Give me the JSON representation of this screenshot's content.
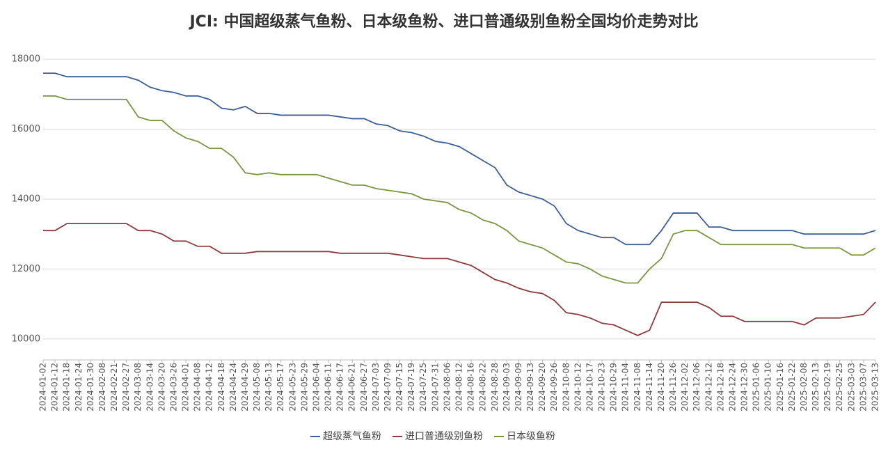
{
  "chart_data": {
    "type": "line",
    "title": "JCI: 中国超级蒸气鱼粉、日本级鱼粉、进口普通级别鱼粉全国均价走势对比",
    "categories": [
      "2024-01-02",
      "2024-01-12",
      "2024-01-18",
      "2024-01-24",
      "2024-01-30",
      "2024-02-08",
      "2024-02-21",
      "2024-02-27",
      "2024-03-08",
      "2024-03-14",
      "2024-03-20",
      "2024-03-26",
      "2024-04-01",
      "2024-04-08",
      "2024-04-12",
      "2024-04-18",
      "2024-04-24",
      "2024-04-29",
      "2024-05-08",
      "2024-05-13",
      "2024-05-17",
      "2024-05-23",
      "2024-05-29",
      "2024-06-04",
      "2024-06-11",
      "2024-06-17",
      "2024-06-21",
      "2024-06-27",
      "2024-07-03",
      "2024-07-09",
      "2024-07-15",
      "2024-07-19",
      "2024-07-25",
      "2024-07-31",
      "2024-08-06",
      "2024-08-12",
      "2024-08-16",
      "2024-08-22",
      "2024-08-28",
      "2024-09-03",
      "2024-09-09",
      "2024-09-13",
      "2024-09-20",
      "2024-09-26",
      "2024-10-08",
      "2024-10-12",
      "2024-10-17",
      "2024-10-23",
      "2024-10-29",
      "2024-11-04",
      "2024-11-08",
      "2024-11-14",
      "2024-11-20",
      "2024-11-26",
      "2024-12-02",
      "2024-12-06",
      "2024-12-12",
      "2024-12-18",
      "2024-12-24",
      "2024-12-30",
      "2025-01-06",
      "2025-01-10",
      "2025-01-16",
      "2025-01-22",
      "2025-02-08",
      "2025-02-13",
      "2025-02-19",
      "2025-02-25",
      "2025-03-03",
      "2025-03-07",
      "2025-03-13"
    ],
    "series": [
      {
        "name": "超级蒸气鱼粉",
        "color": "#3b5f95",
        "values": [
          17600,
          17600,
          17500,
          17500,
          17500,
          17500,
          17500,
          17500,
          17400,
          17200,
          17100,
          17050,
          16950,
          16950,
          16850,
          16600,
          16550,
          16650,
          16450,
          16450,
          16400,
          16400,
          16400,
          16400,
          16400,
          16350,
          16300,
          16300,
          16150,
          16100,
          15950,
          15900,
          15800,
          15650,
          15600,
          15500,
          15300,
          15100,
          14900,
          14400,
          14200,
          14100,
          14000,
          13800,
          13300,
          13100,
          13000,
          12900,
          12900,
          12700,
          12700,
          12700,
          13100,
          13600,
          13600,
          13600,
          13200,
          13200,
          13100,
          13100,
          13100,
          13100,
          13100,
          13100,
          13000,
          13000,
          13000,
          13000,
          13000,
          13000,
          13100
        ]
      },
      {
        "name": "进口普通级别鱼粉",
        "color": "#8b3b3b",
        "values": [
          13100,
          13100,
          13300,
          13300,
          13300,
          13300,
          13300,
          13300,
          13100,
          13100,
          13000,
          12800,
          12800,
          12650,
          12650,
          12450,
          12450,
          12450,
          12500,
          12500,
          12500,
          12500,
          12500,
          12500,
          12500,
          12450,
          12450,
          12450,
          12450,
          12450,
          12400,
          12350,
          12300,
          12300,
          12300,
          12200,
          12100,
          11900,
          11700,
          11600,
          11450,
          11350,
          11300,
          11100,
          10750,
          10700,
          10600,
          10450,
          10400,
          10250,
          10100,
          10250,
          11050,
          11050,
          11050,
          11050,
          10900,
          10650,
          10650,
          10500,
          10500,
          10500,
          10500,
          10500,
          10400,
          10600,
          10600,
          10600,
          10650,
          10700,
          11050
        ]
      },
      {
        "name": "日本级鱼粉",
        "color": "#7a9641",
        "values": [
          16950,
          16950,
          16850,
          16850,
          16850,
          16850,
          16850,
          16850,
          16350,
          16250,
          16250,
          15950,
          15750,
          15650,
          15450,
          15450,
          15200,
          14750,
          14700,
          14750,
          14700,
          14700,
          14700,
          14700,
          14600,
          14500,
          14400,
          14400,
          14300,
          14250,
          14200,
          14150,
          14000,
          13950,
          13900,
          13700,
          13600,
          13400,
          13300,
          13100,
          12800,
          12700,
          12600,
          12400,
          12200,
          12150,
          12000,
          11800,
          11700,
          11600,
          11600,
          12000,
          12300,
          13000,
          13100,
          13100,
          12900,
          12700,
          12700,
          12700,
          12700,
          12700,
          12700,
          12700,
          12600,
          12600,
          12600,
          12600,
          12400,
          12400,
          12600
        ]
      }
    ],
    "ylim": [
      9400,
      18300
    ],
    "yticks": [
      10000,
      12000,
      14000,
      16000,
      18000
    ],
    "grid": true
  }
}
